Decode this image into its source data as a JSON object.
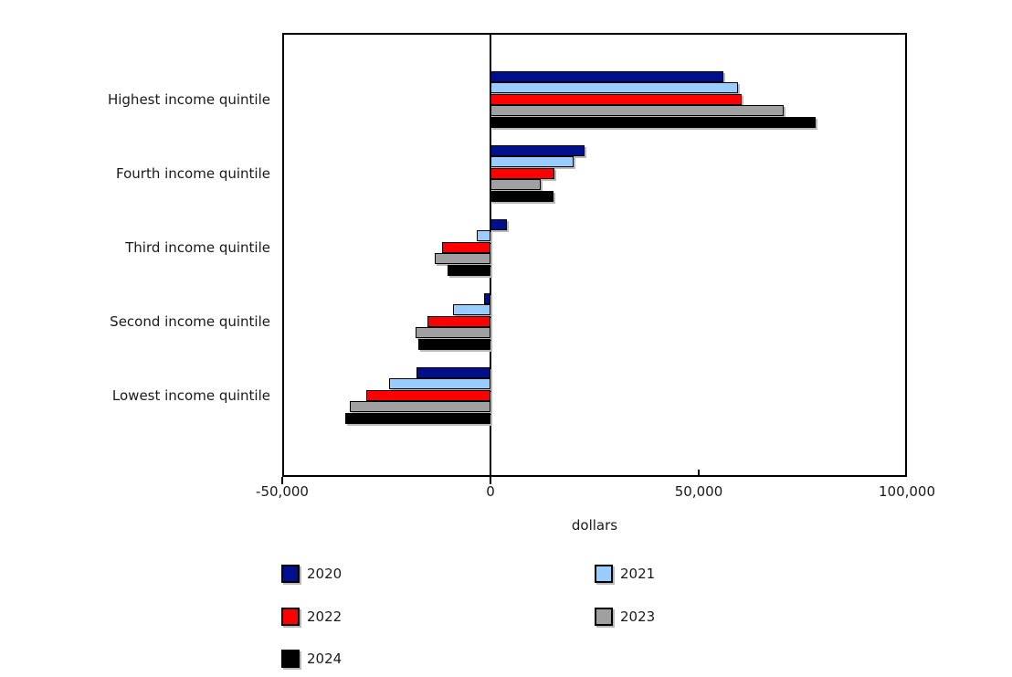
{
  "chart_data": {
    "type": "bar",
    "orientation": "horizontal",
    "title": "",
    "xlabel": "dollars",
    "ylabel": "",
    "xlim": [
      -50000,
      100000
    ],
    "xticks": [
      -50000,
      0,
      50000,
      100000
    ],
    "xtick_labels": [
      "-50,000",
      "0",
      "50,000",
      "100,000"
    ],
    "grid": false,
    "legend_position": "bottom",
    "categories": [
      "Highest income quintile",
      "Fourth income quintile",
      "Third income quintile",
      "Second income quintile",
      "Lowest income quintile"
    ],
    "series": [
      {
        "name": "2020",
        "color": "#00108C",
        "values": [
          56000,
          22500,
          4000,
          -1500,
          -17800
        ]
      },
      {
        "name": "2021",
        "color": "#99CCFF",
        "values": [
          59500,
          20000,
          -3200,
          -9000,
          -24300
        ]
      },
      {
        "name": "2022",
        "color": "#FF0000",
        "values": [
          60200,
          15300,
          -11700,
          -15200,
          -29900
        ]
      },
      {
        "name": "2023",
        "color": "#A0A0A0",
        "values": [
          70300,
          12100,
          -13300,
          -18000,
          -33800
        ]
      },
      {
        "name": "2024",
        "color": "#000000",
        "values": [
          78000,
          15100,
          -10300,
          -17400,
          -34800
        ]
      }
    ],
    "legend_rows": [
      [
        "2020",
        "2021"
      ],
      [
        "2022",
        "2023"
      ],
      [
        "2024"
      ]
    ]
  },
  "colors": {
    "bar_border": "#000000",
    "bar_shadow": "#b9b9b9",
    "axis": "#000000",
    "background": "#ffffff"
  }
}
